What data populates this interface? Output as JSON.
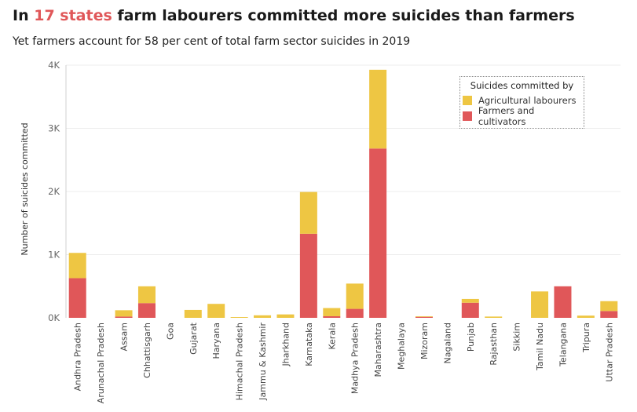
{
  "header": {
    "title_prefix": "In ",
    "title_highlight": "17 states",
    "title_suffix": " farm labourers committed more suicides than farmers",
    "subtitle": "Yet farmers account for 58 per cent of total farm sector suicides in 2019"
  },
  "colors": {
    "highlight": "#e05759",
    "labourers": "#eec643",
    "farmers": "#e05759"
  },
  "legend": {
    "title": "Suicides committed by",
    "items": [
      "Agricultural labourers",
      "Farmers and cultivators"
    ]
  },
  "chart_data": {
    "type": "bar",
    "stacked": true,
    "ylabel": "Number of suicides committed",
    "xlabel": "",
    "ylim": [
      0,
      4000
    ],
    "yticks": [
      0,
      1000,
      2000,
      3000,
      4000
    ],
    "ytick_labels": [
      "0K",
      "1K",
      "2K",
      "3K",
      "4K"
    ],
    "grid": true,
    "legend_position": "top-right",
    "categories": [
      "Andhra Pradesh",
      "Arunachal Pradesh",
      "Assam",
      "Chhattisgarh",
      "Goa",
      "Gujarat",
      "Haryana",
      "Himachal Pradesh",
      "Jammu & Kashmir",
      "Jharkhand",
      "Karnataka",
      "Kerala",
      "Madhya Pradesh",
      "Maharashtra",
      "Meghalaya",
      "Mizoram",
      "Nagaland",
      "Punjab",
      "Rajasthan",
      "Sikkim",
      "Tamil Nadu",
      "Telangana",
      "Tripura",
      "Uttar Pradesh"
    ],
    "series": [
      {
        "name": "Farmers and cultivators",
        "values": [
          628,
          0,
          20,
          233,
          0,
          0,
          0,
          0,
          0,
          0,
          1331,
          25,
          142,
          2680,
          0,
          15,
          0,
          239,
          0,
          0,
          0,
          499,
          0,
          108
        ]
      },
      {
        "name": "Agricultural labourers",
        "values": [
          400,
          0,
          100,
          266,
          0,
          125,
          221,
          12,
          40,
          54,
          661,
          130,
          400,
          1247,
          0,
          10,
          0,
          60,
          20,
          0,
          418,
          0,
          35,
          156
        ]
      }
    ]
  }
}
